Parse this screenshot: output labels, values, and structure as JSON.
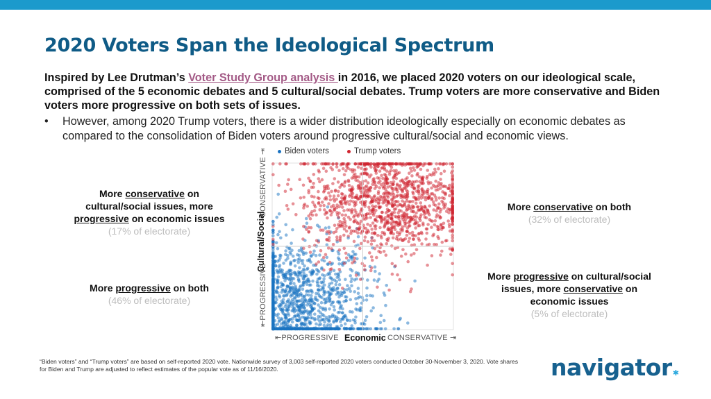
{
  "header": {
    "title": "2020 Voters Span the Ideological Spectrum"
  },
  "intro": {
    "before_link": "Inspired by Lee Drutman’s ",
    "link_text": "Voter Study Group analysis ",
    "after_link": "in 2016, we placed 2020 voters on our ideological scale, comprised of the 5 economic debates and 5 cultural/social debates. Trump voters are more conservative and Biden voters more progressive on both sets of issues.",
    "bullet": "However, among 2020 Trump voters, there is a wider distribution ideologically especially on economic debates as compared to the consolidation of Biden voters around progressive cultural/social and economic views.",
    "bullet_symbol": "•"
  },
  "quadrants": {
    "top_left": {
      "l1": "More ",
      "u1": "conservative",
      "l2": " on cultural/social issues, more ",
      "u2": "progressive",
      "l3": " on economic issues",
      "pct": "(17% of electorate)"
    },
    "bottom_left": {
      "l1": "More ",
      "u1": "progressive",
      "l2": " on both",
      "pct": "(46% of electorate)"
    },
    "top_right": {
      "l1": "More ",
      "u1": "conservative",
      "l2": " on both",
      "pct": "(32% of electorate)"
    },
    "bottom_right": {
      "l1": "More ",
      "u1": "progressive",
      "l2": " on cultural/social issues, more ",
      "u2": "conservative",
      "l3": " on economic issues",
      "pct": "(5% of electorate)"
    }
  },
  "chart_data": {
    "type": "scatter",
    "title": "",
    "xlabel": "Economic",
    "ylabel": "Cultural/Social",
    "x_low_label": "⇤PROGRESSIVE",
    "x_high_label": "CONSERVATIVE ⇥",
    "y_low_label": "⇤PROGRESSIVE",
    "y_high_label": "CONSERVATIVE ⇥",
    "xlim": [
      -1,
      1
    ],
    "ylim": [
      -1,
      1
    ],
    "quadrant_dividers": {
      "x": 0,
      "y": 0
    },
    "grid": false,
    "legend_position": "top",
    "series": [
      {
        "name": "Biden voters",
        "color": "#1a73c2",
        "approx_points": 1500,
        "center": [
          -0.75,
          -0.75
        ],
        "spread": [
          0.42,
          0.42
        ],
        "description": "concentrated in lower-left (progressive on both)"
      },
      {
        "name": "Trump voters",
        "color": "#d0242f",
        "approx_points": 1300,
        "center": [
          0.25,
          0.55
        ],
        "spread": [
          0.45,
          0.35
        ],
        "description": "spread across upper half, densest upper-right (conservative on both)"
      }
    ],
    "quadrant_shares": {
      "top_left": "17%",
      "bottom_left": "46%",
      "top_right": "32%",
      "bottom_right": "5%"
    }
  },
  "footnote": "“Biden voters” and “Trump voters” are based on self-reported 2020 vote. Nationwide survey of 3,003 self-reported 2020 voters conducted October 30-November 3, 2020. Vote shares for Biden and Trump are adjusted to reflect estimates of the popular vote as of 11/16/2020.",
  "logo": {
    "text": "navigator",
    "mark": "."
  },
  "colors": {
    "top_bar": "#1b9acc",
    "title": "#0f5b86",
    "link": "#a35a86",
    "pct_gray": "#bdbdbd"
  }
}
